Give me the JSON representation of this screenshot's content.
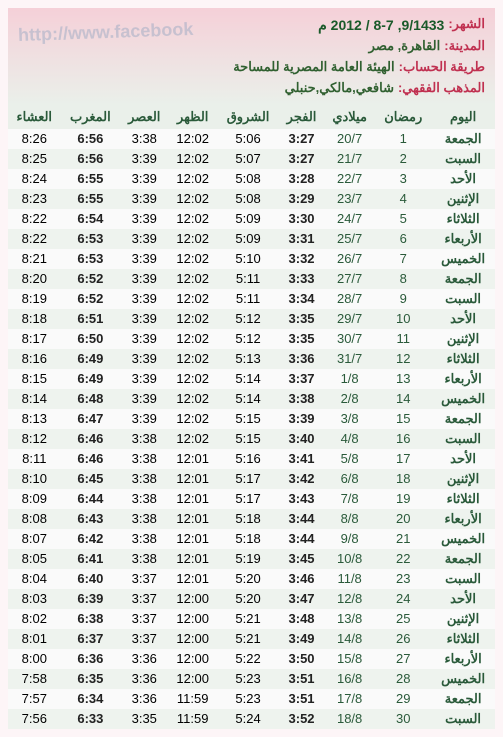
{
  "header": {
    "title_label": "الشهر:",
    "title_value": "9/1433, 8-7 / 2012 م",
    "city_label": "المدينة:",
    "city_value": "القاهرة, مصر",
    "method_label": "طريقة الحساب:",
    "method_value": "الهيئة العامة المصرية للمساحة",
    "fiqh_label": "المذهب الفقهي:",
    "fiqh_value": "شافعي,مالكي,حنبلي",
    "watermark": "http://www.facebook"
  },
  "columns": [
    "اليوم",
    "رمضان",
    "ميلادي",
    "الفجر",
    "الشروق",
    "الظهر",
    "العصر",
    "المغرب",
    "العشاء"
  ],
  "rows": [
    [
      "الجمعة",
      "1",
      "20/7",
      "3:27",
      "5:06",
      "12:02",
      "3:38",
      "6:56",
      "8:26"
    ],
    [
      "السبت",
      "2",
      "21/7",
      "3:27",
      "5:07",
      "12:02",
      "3:39",
      "6:56",
      "8:25"
    ],
    [
      "الأحد",
      "3",
      "22/7",
      "3:28",
      "5:08",
      "12:02",
      "3:39",
      "6:55",
      "8:24"
    ],
    [
      "الإثنين",
      "4",
      "23/7",
      "3:29",
      "5:08",
      "12:02",
      "3:39",
      "6:55",
      "8:23"
    ],
    [
      "الثلاثاء",
      "5",
      "24/7",
      "3:30",
      "5:09",
      "12:02",
      "3:39",
      "6:54",
      "8:22"
    ],
    [
      "الأربعاء",
      "6",
      "25/7",
      "3:31",
      "5:09",
      "12:02",
      "3:39",
      "6:53",
      "8:22"
    ],
    [
      "الخميس",
      "7",
      "26/7",
      "3:32",
      "5:10",
      "12:02",
      "3:39",
      "6:53",
      "8:21"
    ],
    [
      "الجمعة",
      "8",
      "27/7",
      "3:33",
      "5:11",
      "12:02",
      "3:39",
      "6:52",
      "8:20"
    ],
    [
      "السبت",
      "9",
      "28/7",
      "3:34",
      "5:11",
      "12:02",
      "3:39",
      "6:52",
      "8:19"
    ],
    [
      "الأحد",
      "10",
      "29/7",
      "3:35",
      "5:12",
      "12:02",
      "3:39",
      "6:51",
      "8:18"
    ],
    [
      "الإثنين",
      "11",
      "30/7",
      "3:35",
      "5:12",
      "12:02",
      "3:39",
      "6:50",
      "8:17"
    ],
    [
      "الثلاثاء",
      "12",
      "31/7",
      "3:36",
      "5:13",
      "12:02",
      "3:39",
      "6:49",
      "8:16"
    ],
    [
      "الأربعاء",
      "13",
      "1/8",
      "3:37",
      "5:14",
      "12:02",
      "3:39",
      "6:49",
      "8:15"
    ],
    [
      "الخميس",
      "14",
      "2/8",
      "3:38",
      "5:14",
      "12:02",
      "3:39",
      "6:48",
      "8:14"
    ],
    [
      "الجمعة",
      "15",
      "3/8",
      "3:39",
      "5:15",
      "12:02",
      "3:39",
      "6:47",
      "8:13"
    ],
    [
      "السبت",
      "16",
      "4/8",
      "3:40",
      "5:15",
      "12:02",
      "3:38",
      "6:46",
      "8:12"
    ],
    [
      "الأحد",
      "17",
      "5/8",
      "3:41",
      "5:16",
      "12:01",
      "3:38",
      "6:46",
      "8:11"
    ],
    [
      "الإثنين",
      "18",
      "6/8",
      "3:42",
      "5:17",
      "12:01",
      "3:38",
      "6:45",
      "8:10"
    ],
    [
      "الثلاثاء",
      "19",
      "7/8",
      "3:43",
      "5:17",
      "12:01",
      "3:38",
      "6:44",
      "8:09"
    ],
    [
      "الأربعاء",
      "20",
      "8/8",
      "3:44",
      "5:18",
      "12:01",
      "3:38",
      "6:43",
      "8:08"
    ],
    [
      "الخميس",
      "21",
      "9/8",
      "3:44",
      "5:18",
      "12:01",
      "3:38",
      "6:42",
      "8:07"
    ],
    [
      "الجمعة",
      "22",
      "10/8",
      "3:45",
      "5:19",
      "12:01",
      "3:38",
      "6:41",
      "8:05"
    ],
    [
      "السبت",
      "23",
      "11/8",
      "3:46",
      "5:20",
      "12:01",
      "3:37",
      "6:40",
      "8:04"
    ],
    [
      "الأحد",
      "24",
      "12/8",
      "3:47",
      "5:20",
      "12:00",
      "3:37",
      "6:39",
      "8:03"
    ],
    [
      "الإثنين",
      "25",
      "13/8",
      "3:48",
      "5:21",
      "12:00",
      "3:37",
      "6:38",
      "8:02"
    ],
    [
      "الثلاثاء",
      "26",
      "14/8",
      "3:49",
      "5:21",
      "12:00",
      "3:37",
      "6:37",
      "8:01"
    ],
    [
      "الأربعاء",
      "27",
      "15/8",
      "3:50",
      "5:22",
      "12:00",
      "3:36",
      "6:36",
      "8:00"
    ],
    [
      "الخميس",
      "28",
      "16/8",
      "3:51",
      "5:23",
      "12:00",
      "3:36",
      "6:35",
      "7:58"
    ],
    [
      "الجمعة",
      "29",
      "17/8",
      "3:51",
      "5:23",
      "11:59",
      "3:36",
      "6:34",
      "7:57"
    ],
    [
      "السبت",
      "30",
      "18/8",
      "3:52",
      "5:24",
      "11:59",
      "3:35",
      "6:33",
      "7:56"
    ]
  ],
  "bold_cols": [
    3,
    7
  ],
  "colors": {
    "header_grad_top": "#f5d0d8",
    "header_grad_bot": "#eaf0ea",
    "label": "#c03050",
    "value": "#306030",
    "th_bg": "#eaf0ea",
    "th_color": "#2a5a3a",
    "row_bg": "#fafafa",
    "row_alt_bg": "#eef3ee"
  }
}
